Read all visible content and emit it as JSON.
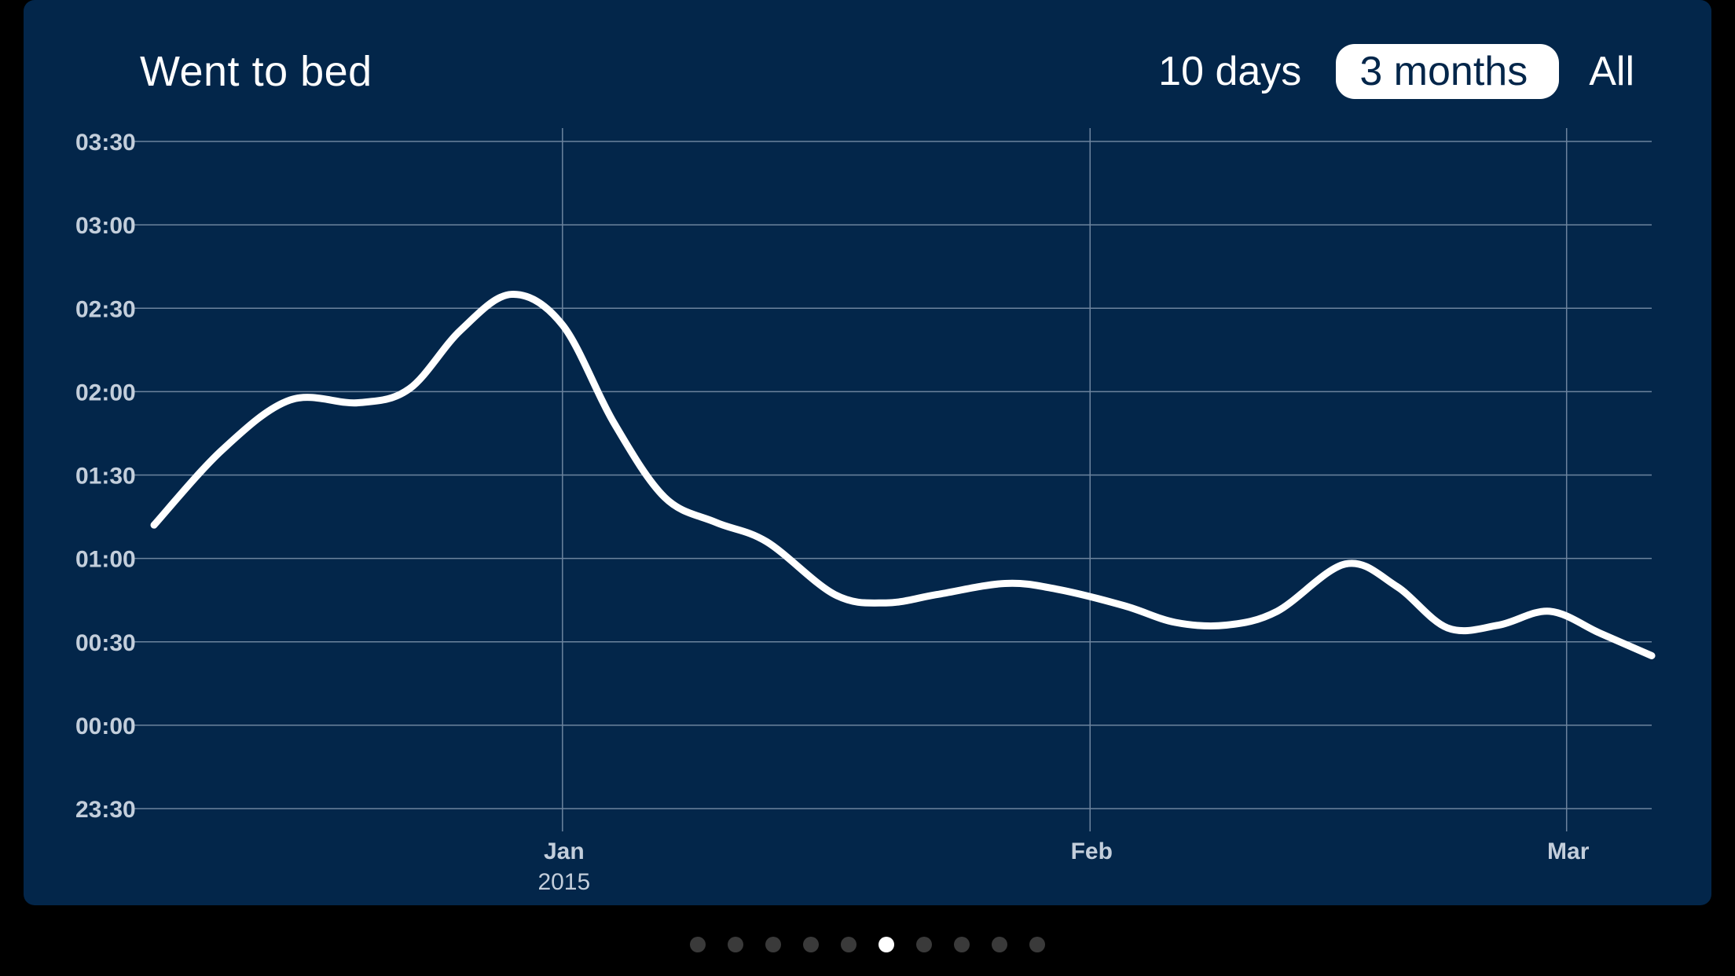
{
  "header": {
    "title": "Went to bed"
  },
  "range_selector": {
    "options": [
      "10 days",
      "3 months",
      "All"
    ],
    "selected": "3 months"
  },
  "pager": {
    "count": 10,
    "active_index": 5
  },
  "colors": {
    "card_background": "#03264a",
    "line": "#ffffff",
    "grid": "#6d849e",
    "tick_text": "#c3cedb",
    "dot_inactive": "#3a3a3a",
    "dot_active": "#ffffff"
  },
  "chart_data": {
    "type": "line",
    "title": "Went to bed",
    "xlabel": "",
    "ylabel": "",
    "x_axis": {
      "type": "date",
      "range": [
        "2014-12-08",
        "2015-03-06"
      ],
      "ticks": [
        {
          "date": "2015-01-01",
          "label": "Jan",
          "sublabel": "2015"
        },
        {
          "date": "2015-02-01",
          "label": "Feb",
          "sublabel": ""
        },
        {
          "date": "2015-03-01",
          "label": "Mar",
          "sublabel": ""
        }
      ]
    },
    "y_axis": {
      "unit": "clock time",
      "range": [
        "23:30",
        "03:30"
      ],
      "ticks": [
        "23:30",
        "00:00",
        "00:30",
        "01:00",
        "01:30",
        "02:00",
        "02:30",
        "03:00",
        "03:30"
      ]
    },
    "grid": {
      "horizontal": true,
      "vertical_at_ticks": true
    },
    "series": [
      {
        "points": [
          {
            "x": "2014-12-08",
            "y": "01:12"
          },
          {
            "x": "2014-12-12",
            "y": "01:39"
          },
          {
            "x": "2014-12-16",
            "y": "01:57"
          },
          {
            "x": "2014-12-20",
            "y": "01:56"
          },
          {
            "x": "2014-12-23",
            "y": "02:01"
          },
          {
            "x": "2014-12-26",
            "y": "02:22"
          },
          {
            "x": "2014-12-29",
            "y": "02:35"
          },
          {
            "x": "2015-01-01",
            "y": "02:24"
          },
          {
            "x": "2015-01-04",
            "y": "01:49"
          },
          {
            "x": "2015-01-07",
            "y": "01:22"
          },
          {
            "x": "2015-01-10",
            "y": "01:13"
          },
          {
            "x": "2015-01-13",
            "y": "01:06"
          },
          {
            "x": "2015-01-17",
            "y": "00:47"
          },
          {
            "x": "2015-01-20",
            "y": "00:44"
          },
          {
            "x": "2015-01-23",
            "y": "00:47"
          },
          {
            "x": "2015-01-27",
            "y": "00:51"
          },
          {
            "x": "2015-01-30",
            "y": "00:49"
          },
          {
            "x": "2015-02-03",
            "y": "00:43"
          },
          {
            "x": "2015-02-06",
            "y": "00:37"
          },
          {
            "x": "2015-02-09",
            "y": "00:36"
          },
          {
            "x": "2015-02-12",
            "y": "00:41"
          },
          {
            "x": "2015-02-16",
            "y": "00:58"
          },
          {
            "x": "2015-02-19",
            "y": "00:50"
          },
          {
            "x": "2015-02-22",
            "y": "00:35"
          },
          {
            "x": "2015-02-25",
            "y": "00:36"
          },
          {
            "x": "2015-02-28",
            "y": "00:41"
          },
          {
            "x": "2015-03-03",
            "y": "00:33"
          },
          {
            "x": "2015-03-06",
            "y": "00:25"
          }
        ]
      }
    ]
  }
}
